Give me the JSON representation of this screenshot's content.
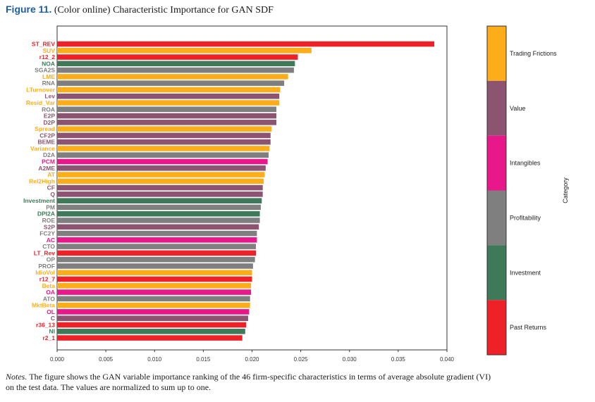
{
  "figure": {
    "label": "Figure 11.",
    "title": "(Color online) Characteristic Importance for GAN SDF",
    "notes_prefix": "Notes.",
    "notes_line1": "The figure shows the GAN variable importance ranking of the 46 firm-specific characteristics in terms of average absolute gradient (VI)",
    "notes_line2": "on the test data. The values are normalized to sum up to one."
  },
  "colors": {
    "Past Returns": "#ee2129",
    "Investment": "#3e7a5a",
    "Profitability": "#7f7f7f",
    "Intangibles": "#e8178a",
    "Value": "#8c5470",
    "Trading Frictions": "#fbae1a"
  },
  "chart_data": {
    "type": "bar",
    "orientation": "horizontal",
    "xlim": [
      0,
      0.04
    ],
    "xticks": [
      "0.000",
      "0.005",
      "0.010",
      "0.015",
      "0.020",
      "0.025",
      "0.030",
      "0.035",
      "0.040"
    ],
    "legend_title": "Category",
    "legend_placement": "right",
    "legend_order": [
      "Trading Frictions",
      "Value",
      "Intangibles",
      "Profitability",
      "Investment",
      "Past Returns"
    ],
    "bars": [
      {
        "label": "ST_REV",
        "value": 0.0387,
        "category": "Past Returns"
      },
      {
        "label": "SUV",
        "value": 0.0261,
        "category": "Trading Frictions"
      },
      {
        "label": "r12_2",
        "value": 0.0247,
        "category": "Past Returns"
      },
      {
        "label": "NOA",
        "value": 0.0244,
        "category": "Investment"
      },
      {
        "label": "SGA2S",
        "value": 0.0243,
        "category": "Profitability"
      },
      {
        "label": "LME",
        "value": 0.0237,
        "category": "Trading Frictions"
      },
      {
        "label": "RNA",
        "value": 0.0233,
        "category": "Profitability"
      },
      {
        "label": "LTurnover",
        "value": 0.0229,
        "category": "Trading Frictions"
      },
      {
        "label": "Lev",
        "value": 0.0228,
        "category": "Value"
      },
      {
        "label": "Resid_Var",
        "value": 0.0228,
        "category": "Trading Frictions"
      },
      {
        "label": "ROA",
        "value": 0.0225,
        "category": "Profitability"
      },
      {
        "label": "E2P",
        "value": 0.0225,
        "category": "Value"
      },
      {
        "label": "D2P",
        "value": 0.0225,
        "category": "Value"
      },
      {
        "label": "Spread",
        "value": 0.022,
        "category": "Trading Frictions"
      },
      {
        "label": "CF2P",
        "value": 0.0219,
        "category": "Value"
      },
      {
        "label": "BEME",
        "value": 0.0219,
        "category": "Value"
      },
      {
        "label": "Variance",
        "value": 0.0218,
        "category": "Trading Frictions"
      },
      {
        "label": "D2A",
        "value": 0.0217,
        "category": "Profitability"
      },
      {
        "label": "PCM",
        "value": 0.0216,
        "category": "Intangibles"
      },
      {
        "label": "A2ME",
        "value": 0.0214,
        "category": "Value"
      },
      {
        "label": "AT",
        "value": 0.0213,
        "category": "Trading Frictions"
      },
      {
        "label": "Rel2High",
        "value": 0.0212,
        "category": "Trading Frictions"
      },
      {
        "label": "CF",
        "value": 0.0211,
        "category": "Value"
      },
      {
        "label": "Q",
        "value": 0.0211,
        "category": "Value"
      },
      {
        "label": "Investment",
        "value": 0.021,
        "category": "Investment"
      },
      {
        "label": "PM",
        "value": 0.0209,
        "category": "Profitability"
      },
      {
        "label": "DPI2A",
        "value": 0.0208,
        "category": "Investment"
      },
      {
        "label": "ROE",
        "value": 0.0208,
        "category": "Profitability"
      },
      {
        "label": "S2P",
        "value": 0.0207,
        "category": "Value"
      },
      {
        "label": "FC2Y",
        "value": 0.0205,
        "category": "Profitability"
      },
      {
        "label": "AC",
        "value": 0.0205,
        "category": "Intangibles"
      },
      {
        "label": "CTO",
        "value": 0.0204,
        "category": "Profitability"
      },
      {
        "label": "LT_Rev",
        "value": 0.0204,
        "category": "Past Returns"
      },
      {
        "label": "OP",
        "value": 0.0203,
        "category": "Profitability"
      },
      {
        "label": "PROF",
        "value": 0.0201,
        "category": "Profitability"
      },
      {
        "label": "IdioVol",
        "value": 0.02,
        "category": "Trading Frictions"
      },
      {
        "label": "r12_7",
        "value": 0.02,
        "category": "Past Returns"
      },
      {
        "label": "Beta",
        "value": 0.0199,
        "category": "Trading Frictions"
      },
      {
        "label": "OA",
        "value": 0.0199,
        "category": "Intangibles"
      },
      {
        "label": "ATO",
        "value": 0.0198,
        "category": "Profitability"
      },
      {
        "label": "MktBeta",
        "value": 0.0198,
        "category": "Trading Frictions"
      },
      {
        "label": "OL",
        "value": 0.0197,
        "category": "Intangibles"
      },
      {
        "label": "C",
        "value": 0.0196,
        "category": "Value"
      },
      {
        "label": "r36_13",
        "value": 0.0194,
        "category": "Past Returns"
      },
      {
        "label": "NI",
        "value": 0.0193,
        "category": "Investment"
      },
      {
        "label": "r2_1",
        "value": 0.019,
        "category": "Past Returns"
      }
    ]
  }
}
